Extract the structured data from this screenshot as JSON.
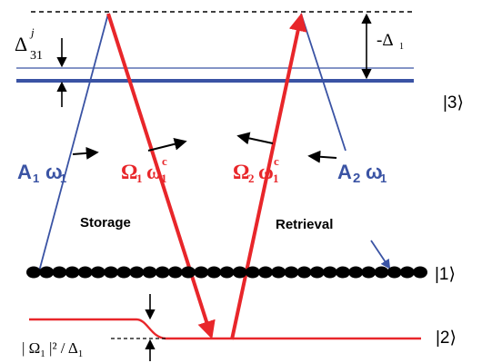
{
  "levels": {
    "level3": "|3⟩",
    "level1": "|1⟩",
    "level2": "|2⟩"
  },
  "detunings": {
    "delta31_main": "Δ",
    "delta31_sup": "j",
    "delta31_sub": "31",
    "minus_delta1": "-Δ",
    "minus_delta1_sub": "1",
    "light_shift": "| Ω",
    "light_shift_sub1": "1",
    "light_shift_rest": " |² / Δ",
    "light_shift_sub2": "1"
  },
  "fields": {
    "A1_A": "A",
    "A1_sub": "1",
    "A1_omega": "ω",
    "A1_omega_sub": "1",
    "Omega1": "Ω",
    "Omega1_sub": "1",
    "Omega1_omega": "ω",
    "Omega1_omega_sub": "1",
    "Omega1_sup": "c",
    "Omega2": "Ω",
    "Omega2_sub": "2",
    "Omega2_omega": "ω",
    "Omega2_omega_sub": "1",
    "Omega2_sup": "c",
    "A2_A": "A",
    "A2_sub": "2",
    "A2_omega": "ω",
    "A2_omega_sub": "1"
  },
  "labels": {
    "storage": "Storage",
    "retrieval": "Retrieval"
  },
  "colors": {
    "blue": "#3a53a4",
    "red": "#e8262a",
    "black": "#000000"
  }
}
